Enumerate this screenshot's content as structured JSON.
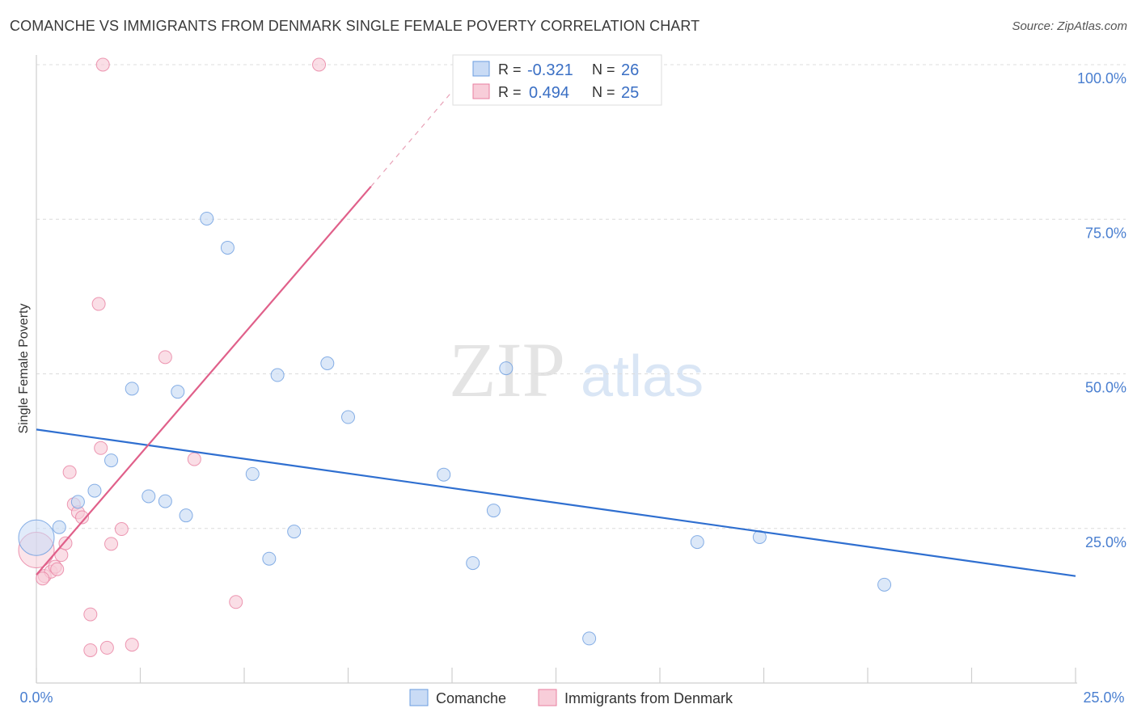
{
  "title": "COMANCHE VS IMMIGRANTS FROM DENMARK SINGLE FEMALE POVERTY CORRELATION CHART",
  "source": "Source: ZipAtlas.com",
  "chart_data": {
    "type": "scatter",
    "ylabel": "Single Female Poverty",
    "xlim": [
      0,
      25
    ],
    "ylim": [
      0,
      100
    ],
    "x_tick_labels": [
      "0.0%",
      "25.0%"
    ],
    "y_ticks": [
      {
        "value": 25,
        "label": "25.0%"
      },
      {
        "value": 50,
        "label": "50.0%"
      },
      {
        "value": 75,
        "label": "75.0%"
      },
      {
        "value": 100,
        "label": "100.0%"
      }
    ],
    "watermark": {
      "zip": "ZIP",
      "atlas": "atlas"
    },
    "legend": {
      "r_label": "R =",
      "n_label": "N =",
      "entries": [
        {
          "name": "Comanche",
          "r": "-0.321",
          "n": "26"
        },
        {
          "name": "Immigrants from Denmark",
          "r": "0.494",
          "n": "25"
        }
      ]
    },
    "series": [
      {
        "name": "Comanche",
        "color": "#6a9ce0",
        "fill": "#c9dbf5",
        "trend": {
          "x0": 0,
          "y0": 41.0,
          "x1": 25,
          "y1": 17.3
        },
        "points": [
          {
            "x": 0.0,
            "y": 23.5,
            "big": true
          },
          {
            "x": 0.55,
            "y": 25.2
          },
          {
            "x": 1.0,
            "y": 29.3
          },
          {
            "x": 1.4,
            "y": 31.1
          },
          {
            "x": 1.8,
            "y": 36.0
          },
          {
            "x": 2.3,
            "y": 47.6
          },
          {
            "x": 2.7,
            "y": 30.2
          },
          {
            "x": 3.1,
            "y": 29.4
          },
          {
            "x": 3.4,
            "y": 47.1
          },
          {
            "x": 3.6,
            "y": 27.1
          },
          {
            "x": 4.1,
            "y": 75.1
          },
          {
            "x": 4.6,
            "y": 70.4
          },
          {
            "x": 5.2,
            "y": 33.8
          },
          {
            "x": 5.6,
            "y": 20.1
          },
          {
            "x": 5.8,
            "y": 49.8
          },
          {
            "x": 6.2,
            "y": 24.5
          },
          {
            "x": 7.0,
            "y": 51.7
          },
          {
            "x": 7.5,
            "y": 43.0
          },
          {
            "x": 9.8,
            "y": 33.7
          },
          {
            "x": 10.5,
            "y": 19.4
          },
          {
            "x": 11.0,
            "y": 27.9
          },
          {
            "x": 11.3,
            "y": 50.9
          },
          {
            "x": 13.3,
            "y": 7.2
          },
          {
            "x": 15.9,
            "y": 22.8
          },
          {
            "x": 17.4,
            "y": 23.6
          },
          {
            "x": 20.4,
            "y": 15.9
          }
        ]
      },
      {
        "name": "Immigrants from Denmark",
        "color": "#e87fa0",
        "fill": "#f8cdd9",
        "trend": {
          "x0": 0,
          "y0": 17.5,
          "x1": 8.05,
          "y1": 80.3
        },
        "trend_dashed": {
          "x0": 8.05,
          "y0": 80.3,
          "x1": 10.3,
          "y1": 98.0
        },
        "points": [
          {
            "x": 0.0,
            "y": 21.5,
            "big": true
          },
          {
            "x": 0.2,
            "y": 17.3
          },
          {
            "x": 0.35,
            "y": 18.0
          },
          {
            "x": 0.45,
            "y": 18.8
          },
          {
            "x": 0.5,
            "y": 18.4
          },
          {
            "x": 0.6,
            "y": 20.7
          },
          {
            "x": 0.7,
            "y": 22.6
          },
          {
            "x": 0.8,
            "y": 34.1
          },
          {
            "x": 0.9,
            "y": 28.9
          },
          {
            "x": 1.0,
            "y": 27.6
          },
          {
            "x": 1.1,
            "y": 26.8
          },
          {
            "x": 1.3,
            "y": 11.1
          },
          {
            "x": 1.5,
            "y": 61.3
          },
          {
            "x": 1.55,
            "y": 38.0
          },
          {
            "x": 1.6,
            "y": 100.0
          },
          {
            "x": 1.7,
            "y": 5.7
          },
          {
            "x": 1.8,
            "y": 22.5
          },
          {
            "x": 1.3,
            "y": 5.3
          },
          {
            "x": 2.05,
            "y": 24.9
          },
          {
            "x": 2.3,
            "y": 6.2
          },
          {
            "x": 3.1,
            "y": 52.7
          },
          {
            "x": 3.8,
            "y": 36.2
          },
          {
            "x": 4.8,
            "y": 13.1
          },
          {
            "x": 6.8,
            "y": 100.0
          },
          {
            "x": 0.15,
            "y": 16.9
          }
        ]
      }
    ]
  }
}
